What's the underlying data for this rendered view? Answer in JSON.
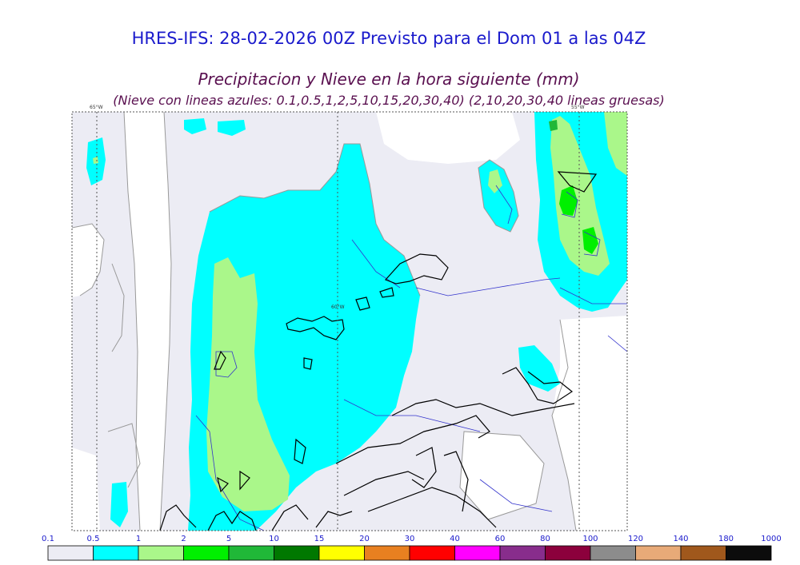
{
  "title": "HRES-IFS: 28-02-2026 00Z Previsto para el Dom 01 a las 04Z",
  "subtitle": "Precipitacion y Nieve en la hora siguiente (mm)",
  "note": "(Nieve con lineas azules: 0.1,0.5,1,2,5,10,15,20,30,40)  (2,10,20,30,40 lineas gruesas)",
  "longitude_labels": [
    "65°W",
    "60°W",
    "55°W"
  ],
  "colorbar": {
    "ticks": [
      "0.1",
      "0.5",
      "1",
      "2",
      "5",
      "10",
      "15",
      "20",
      "30",
      "40",
      "60",
      "80",
      "100",
      "120",
      "140",
      "180",
      "1000"
    ],
    "colors": [
      "#ececf4",
      "#00ffff",
      "#aaf78a",
      "#00f000",
      "#20b838",
      "#007800",
      "#ffff00",
      "#e88020",
      "#ff0000",
      "#ff00ff",
      "#882d8c",
      "#8c003c",
      "#8c8c8c",
      "#e8aa78",
      "#a0581c",
      "#0c0c0c"
    ]
  },
  "colors": {
    "title": "#1a1acc",
    "subtitle": "#5a1050",
    "ocean": "#ffffff",
    "light_precip": "#ececf4",
    "snow_lines": "#3333cc",
    "coast": "#000000"
  }
}
